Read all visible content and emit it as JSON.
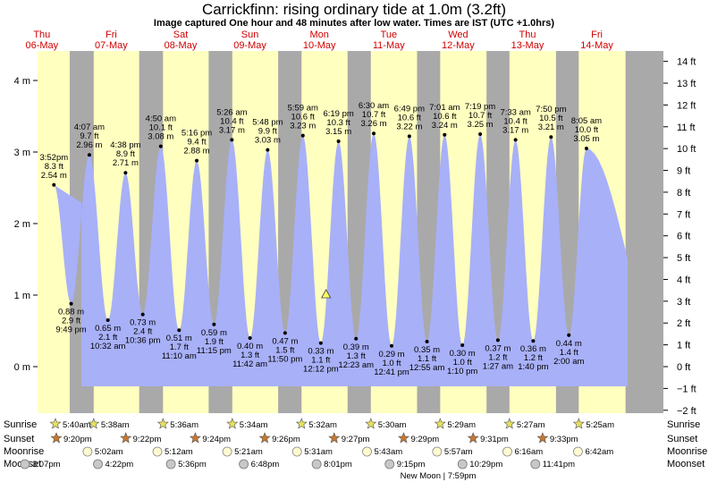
{
  "chart_data": {
    "type": "area",
    "title": "Carrickfinn: rising  ordinary tide at 1.0m (3.2ft)",
    "subtitle": "Image captured One hour and 48 minutes after low water. Times are IST (UTC +1.0hrs)",
    "days": [
      {
        "name": "Thu",
        "date": "06-May"
      },
      {
        "name": "Fri",
        "date": "07-May"
      },
      {
        "name": "Sat",
        "date": "08-May"
      },
      {
        "name": "Sun",
        "date": "09-May"
      },
      {
        "name": "Mon",
        "date": "10-May"
      },
      {
        "name": "Tue",
        "date": "11-May"
      },
      {
        "name": "Wed",
        "date": "12-May"
      },
      {
        "name": "Thu",
        "date": "13-May"
      },
      {
        "name": "Fri",
        "date": "14-May"
      }
    ],
    "left_axis_ticks": [
      "4 m",
      "3 m",
      "2 m",
      "1 m",
      "0 m"
    ],
    "left_axis_values": [
      4,
      3,
      2,
      1,
      0
    ],
    "right_axis_ticks": [
      "14 ft",
      "13 ft",
      "12 ft",
      "11 ft",
      "10 ft",
      "9 ft",
      "8 ft",
      "7 ft",
      "6 ft",
      "5 ft",
      "4 ft",
      "3 ft",
      "2 ft",
      "1 ft",
      "0 ft",
      "−1 ft",
      "−2 ft"
    ],
    "right_axis_values": [
      14,
      13,
      12,
      11,
      10,
      9,
      8,
      7,
      6,
      5,
      4,
      3,
      2,
      1,
      0,
      -1,
      -2
    ],
    "ylim": [
      -0.6,
      4.4
    ],
    "tides": [
      {
        "type": "high",
        "day": 0,
        "time": "3:52pm",
        "ft": "8.3 ft",
        "m": "2.54 m",
        "value": 2.54
      },
      {
        "type": "low",
        "day": 0,
        "time": "9:49 pm",
        "ft": "2.9 ft",
        "m": "0.88 m",
        "value": 0.88
      },
      {
        "type": "high",
        "day": 1,
        "time": "4:07 am",
        "ft": "9.7 ft",
        "m": "2.96 m",
        "value": 2.96
      },
      {
        "type": "low",
        "day": 1,
        "time": "10:32 am",
        "ft": "2.1 ft",
        "m": "0.65 m",
        "value": 0.65
      },
      {
        "type": "high",
        "day": 1,
        "time": "4:38 pm",
        "ft": "8.9 ft",
        "m": "2.71 m",
        "value": 2.71
      },
      {
        "type": "low",
        "day": 1,
        "time": "10:36 pm",
        "ft": "2.4 ft",
        "m": "0.73 m",
        "value": 0.73
      },
      {
        "type": "high",
        "day": 2,
        "time": "4:50 am",
        "ft": "10.1 ft",
        "m": "3.08 m",
        "value": 3.08
      },
      {
        "type": "low",
        "day": 2,
        "time": "11:10 am",
        "ft": "1.7 ft",
        "m": "0.51 m",
        "value": 0.51
      },
      {
        "type": "high",
        "day": 2,
        "time": "5:16 pm",
        "ft": "9.4 ft",
        "m": "2.88 m",
        "value": 2.88
      },
      {
        "type": "low",
        "day": 2,
        "time": "11:15 pm",
        "ft": "1.9 ft",
        "m": "0.59 m",
        "value": 0.59
      },
      {
        "type": "high",
        "day": 3,
        "time": "5:26 am",
        "ft": "10.4 ft",
        "m": "3.17 m",
        "value": 3.17
      },
      {
        "type": "low",
        "day": 3,
        "time": "11:42 am",
        "ft": "1.3 ft",
        "m": "0.40 m",
        "value": 0.4
      },
      {
        "type": "high",
        "day": 3,
        "time": "5:48 pm",
        "ft": "9.9 ft",
        "m": "3.03 m",
        "value": 3.03
      },
      {
        "type": "low",
        "day": 3,
        "time": "11:50 pm",
        "ft": "1.5 ft",
        "m": "0.47 m",
        "value": 0.47
      },
      {
        "type": "high",
        "day": 4,
        "time": "5:59 am",
        "ft": "10.6 ft",
        "m": "3.23 m",
        "value": 3.23
      },
      {
        "type": "low",
        "day": 4,
        "time": "12:12 pm",
        "ft": "1.1 ft",
        "m": "0.33 m",
        "value": 0.33
      },
      {
        "type": "high",
        "day": 4,
        "time": "6:19 pm",
        "ft": "10.3 ft",
        "m": "3.15 m",
        "value": 3.15
      },
      {
        "type": "low",
        "day": 5,
        "time": "12:23 am",
        "ft": "1.3 ft",
        "m": "0.39 m",
        "value": 0.39
      },
      {
        "type": "high",
        "day": 5,
        "time": "6:30 am",
        "ft": "10.7 ft",
        "m": "3.26 m",
        "value": 3.26
      },
      {
        "type": "low",
        "day": 5,
        "time": "12:41 pm",
        "ft": "1.0 ft",
        "m": "0.29 m",
        "value": 0.29
      },
      {
        "type": "high",
        "day": 5,
        "time": "6:49 pm",
        "ft": "10.6 ft",
        "m": "3.22 m",
        "value": 3.22
      },
      {
        "type": "low",
        "day": 6,
        "time": "12:55 am",
        "ft": "1.1 ft",
        "m": "0.35 m",
        "value": 0.35
      },
      {
        "type": "high",
        "day": 6,
        "time": "7:01 am",
        "ft": "10.6 ft",
        "m": "3.24 m",
        "value": 3.24
      },
      {
        "type": "low",
        "day": 6,
        "time": "1:10 pm",
        "ft": "1.0 ft",
        "m": "0.30 m",
        "value": 0.3
      },
      {
        "type": "high",
        "day": 6,
        "time": "7:19 pm",
        "ft": "10.7 ft",
        "m": "3.25 m",
        "value": 3.25
      },
      {
        "type": "low",
        "day": 7,
        "time": "1:27 am",
        "ft": "1.2 ft",
        "m": "0.37 m",
        "value": 0.37
      },
      {
        "type": "high",
        "day": 7,
        "time": "7:33 am",
        "ft": "10.4 ft",
        "m": "3.17 m",
        "value": 3.17
      },
      {
        "type": "low",
        "day": 7,
        "time": "1:40 pm",
        "ft": "1.2 ft",
        "m": "0.36 m",
        "value": 0.36
      },
      {
        "type": "high",
        "day": 7,
        "time": "7:50 pm",
        "ft": "10.5 ft",
        "m": "3.21 m",
        "value": 3.21
      },
      {
        "type": "low",
        "day": 8,
        "time": "2:00 am",
        "ft": "1.4 ft",
        "m": "0.44 m",
        "value": 0.44
      },
      {
        "type": "high",
        "day": 8,
        "time": "8:05 am",
        "ft": "10.0 ft",
        "m": "3.05 m",
        "value": 3.05
      }
    ],
    "current_level_m": 1.0,
    "current_time": "2:00pm"
  },
  "rows": {
    "sunrise_label": "Sunrise",
    "sunset_label": "Sunset",
    "moonrise_label": "Moonrise",
    "moonset_label": "Moonset",
    "sunrise": [
      "5:40am",
      "5:38am",
      "5:36am",
      "5:34am",
      "5:32am",
      "5:30am",
      "5:29am",
      "5:27am",
      "5:25am"
    ],
    "sunset": [
      "9:20pm",
      "9:22pm",
      "9:24pm",
      "9:26pm",
      "9:27pm",
      "9:29pm",
      "9:31pm",
      "9:33pm"
    ],
    "moonrise": [
      "5:02am",
      "5:12am",
      "5:21am",
      "5:31am",
      "5:43am",
      "5:57am",
      "6:16am",
      "6:42am"
    ],
    "moonset": [
      "3:07pm",
      "4:22pm",
      "5:36pm",
      "6:48pm",
      "8:01pm",
      "9:15pm",
      "10:29pm",
      "11:41pm"
    ],
    "new_moon": "New Moon | 7:59pm"
  },
  "colors": {
    "water": "#a8b0f8",
    "day_band": "#ffffc0",
    "night_band": "#a9a9a9",
    "day_header": "#d00000",
    "marker": "#ffff60"
  }
}
